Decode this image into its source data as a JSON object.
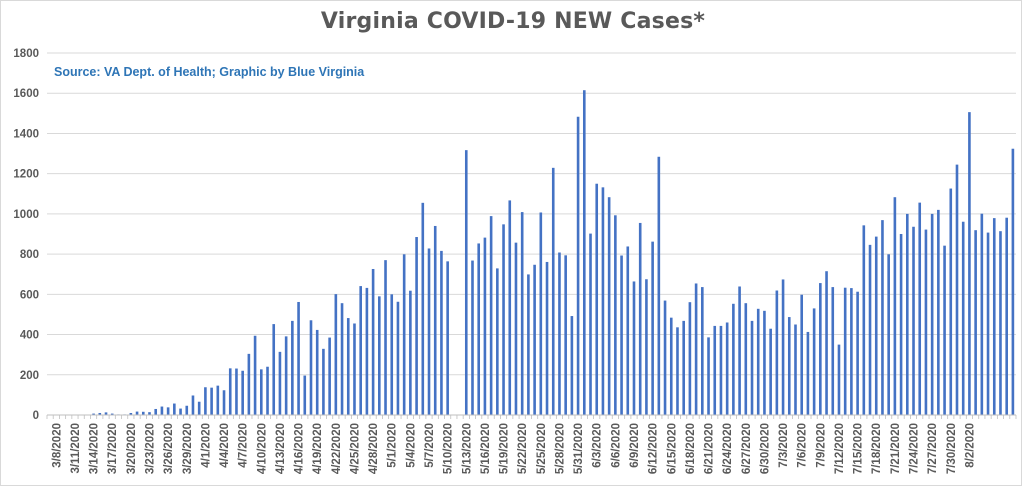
{
  "chart_data": {
    "type": "bar",
    "title": "Virginia COVID-19 NEW Cases*",
    "subtitle": "Source: VA Dept. of Health; Graphic by Blue Virginia",
    "xlabel": "",
    "ylabel": "",
    "ylim": [
      0,
      1800
    ],
    "yticks": [
      0,
      200,
      400,
      600,
      800,
      1000,
      1200,
      1400,
      1600,
      1800
    ],
    "grid": true,
    "legend": "none",
    "bar_color": "#4472c4",
    "start_date": "3/7/2020",
    "xtick_labels": [
      "3/8/2020",
      "3/11/2020",
      "3/14/2020",
      "3/17/2020",
      "3/20/2020",
      "3/23/2020",
      "3/26/2020",
      "3/29/2020",
      "4/1/2020",
      "4/4/2020",
      "4/7/2020",
      "4/10/2020",
      "4/13/2020",
      "4/16/2020",
      "4/19/2020",
      "4/22/2020",
      "4/25/2020",
      "4/28/2020",
      "5/1/2020",
      "5/4/2020",
      "5/7/2020",
      "5/10/2020",
      "5/13/2020",
      "5/16/2020",
      "5/19/2020",
      "5/22/2020",
      "5/25/2020",
      "5/28/2020",
      "5/31/2020",
      "6/3/2020",
      "6/6/2020",
      "6/9/2020",
      "6/12/2020",
      "6/15/2020",
      "6/18/2020",
      "6/21/2020",
      "6/24/2020",
      "6/27/2020",
      "6/30/2020",
      "7/3/2020",
      "7/6/2020",
      "7/9/2020",
      "7/12/2020",
      "7/15/2020",
      "7/18/2020",
      "7/21/2020",
      "7/24/2020",
      "7/27/2020",
      "7/30/2020",
      "8/2/2020"
    ],
    "values": [
      2,
      0,
      2,
      0,
      0,
      0,
      0,
      7,
      10,
      13,
      7,
      3,
      3,
      10,
      17,
      16,
      14,
      30,
      42,
      38,
      57,
      32,
      46,
      97,
      66,
      138,
      136,
      146,
      123,
      232,
      231,
      220,
      304,
      394,
      227,
      240,
      452,
      314,
      391,
      468,
      562,
      196,
      471,
      423,
      329,
      385,
      601,
      556,
      482,
      455,
      641,
      632,
      726,
      590,
      770,
      600,
      563,
      799,
      618,
      885,
      1055,
      828,
      940,
      816,
      764,
      0,
      0,
      1317,
      768,
      853,
      882,
      989,
      729,
      948,
      1067,
      857,
      1009,
      699,
      747,
      1007,
      761,
      1229,
      808,
      794,
      492,
      1483,
      1615,
      902,
      1150,
      1132,
      1083,
      993,
      793,
      838,
      664,
      955,
      675,
      862,
      1284,
      569,
      484,
      436,
      468,
      561,
      654,
      636,
      386,
      443,
      443,
      460,
      553,
      639,
      556,
      468,
      528,
      518,
      429,
      619,
      674,
      487,
      450,
      598,
      413,
      530,
      656,
      715,
      636,
      350,
      633,
      631,
      613,
      943,
      846,
      887,
      969,
      799,
      1083,
      900,
      1000,
      936,
      1056,
      922,
      1000,
      1020,
      842,
      1126,
      1245,
      961,
      1506,
      919,
      1001,
      907,
      979,
      914,
      981,
      1324
    ]
  }
}
